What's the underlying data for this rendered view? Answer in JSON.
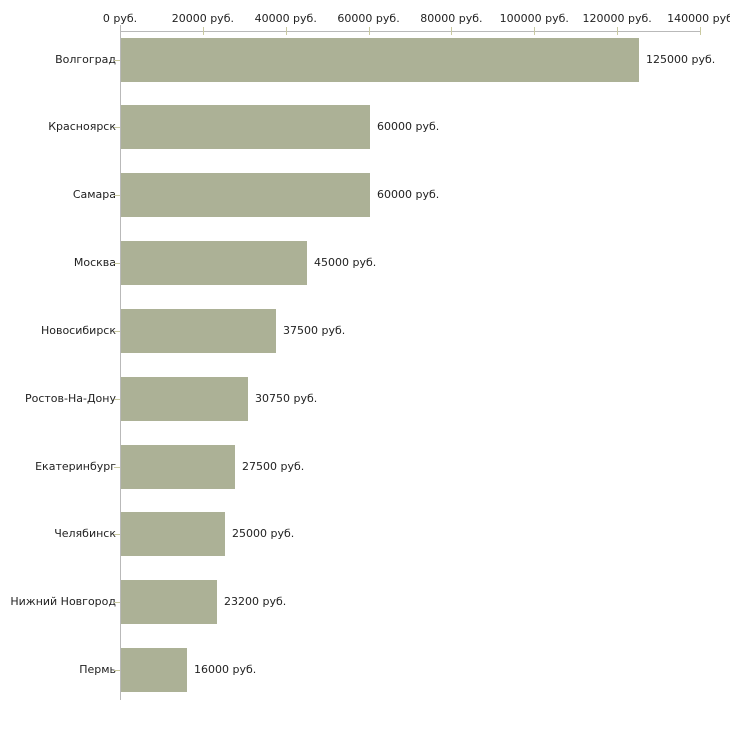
{
  "chart_data": {
    "type": "bar",
    "orientation": "horizontal",
    "title": "",
    "xlabel": "",
    "ylabel": "",
    "categories": [
      "Волгоград",
      "Красноярск",
      "Самара",
      "Москва",
      "Новосибирск",
      "Ростов-На-Дону",
      "Екатеринбург",
      "Челябинск",
      "Нижний Новгород",
      "Пермь"
    ],
    "values": [
      125000,
      60000,
      60000,
      45000,
      37500,
      30750,
      27500,
      25000,
      23200,
      16000
    ],
    "value_labels": [
      "125000 руб.",
      "60000 руб.",
      "60000 руб.",
      "45000 руб.",
      "37500 руб.",
      "30750 руб.",
      "27500 руб.",
      "25000 руб.",
      "23200 руб.",
      "16000 руб."
    ],
    "xlim": [
      0,
      140000
    ],
    "x_tick_step": 20000,
    "x_tick_labels": [
      "0 руб.",
      "20000 руб.",
      "40000 руб.",
      "60000 руб.",
      "80000 руб.",
      "100000 руб.",
      "120000 руб.",
      "140000 руб"
    ],
    "grid": false,
    "legend": false,
    "colors": {
      "bar": "#acb196",
      "axis": "#b9b9b9",
      "tick": "#c9c9a0",
      "text": "#222222",
      "background": "#ffffff"
    }
  }
}
